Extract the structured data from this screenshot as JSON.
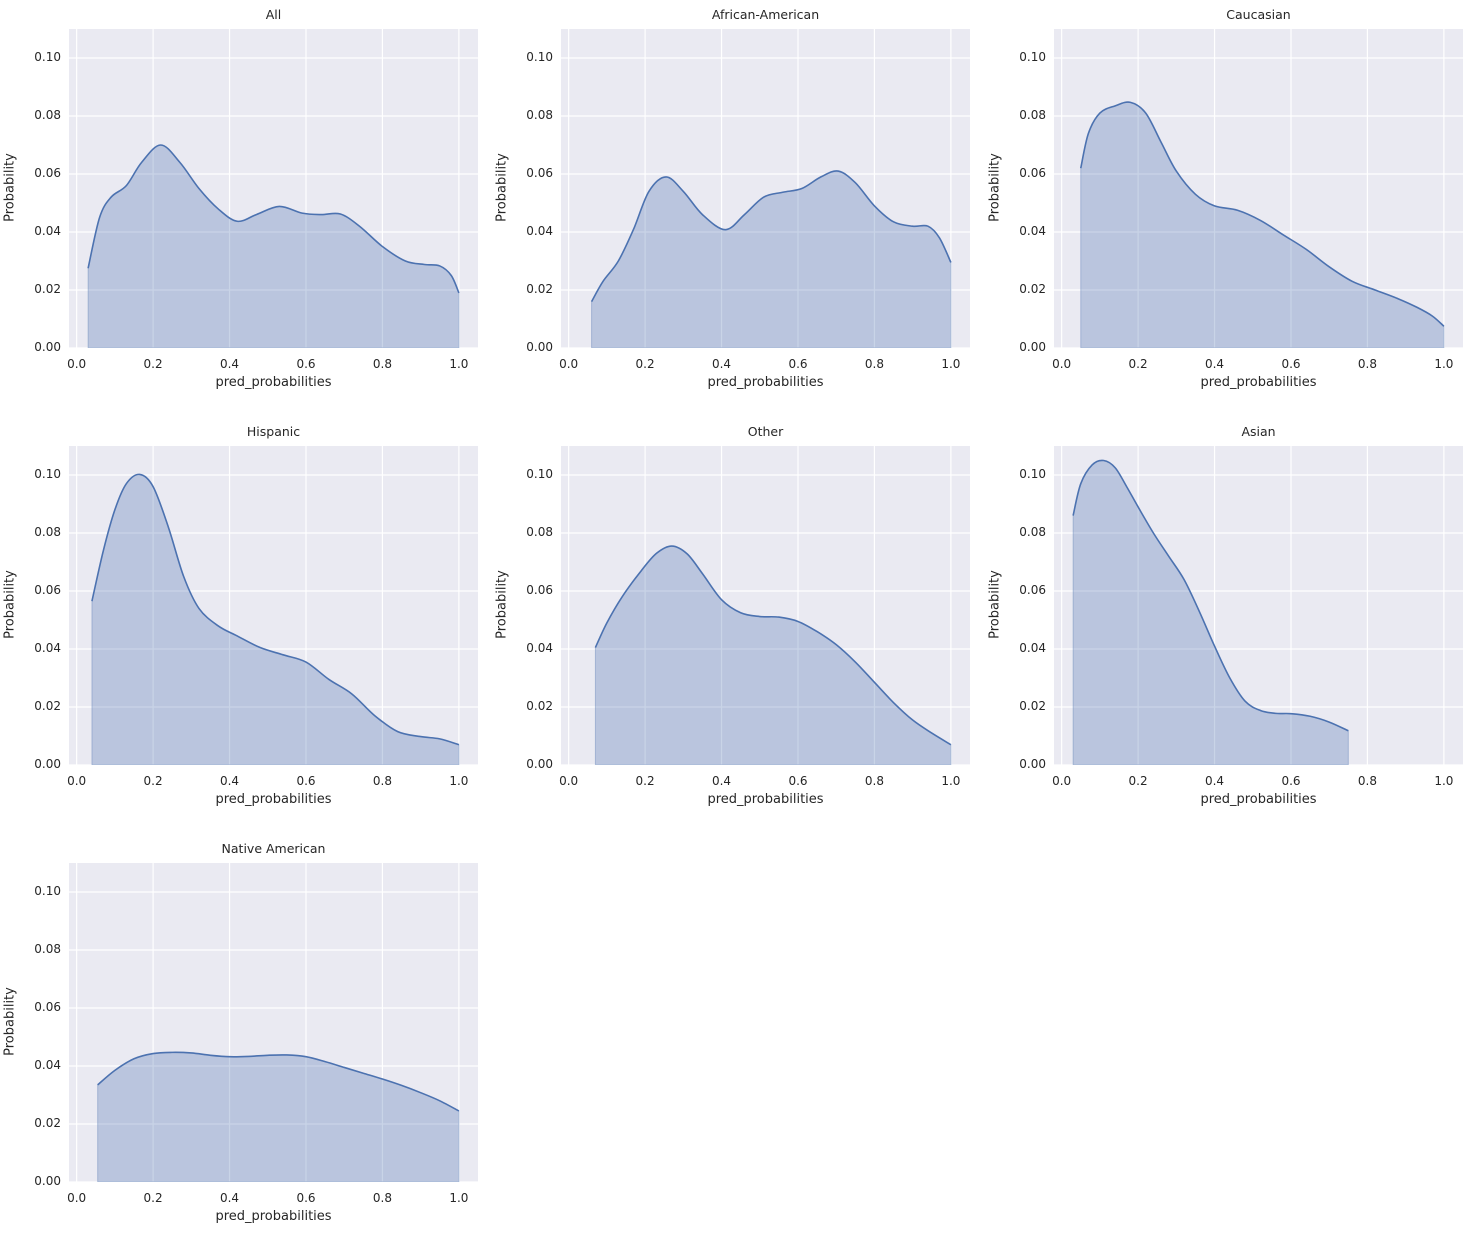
{
  "figure": {
    "background": "#ffffff",
    "plot_background": "#eaeaf2",
    "grid_color": "#ffffff",
    "line_color": "#4c72b0",
    "fill_color": "#4c72b0",
    "fill_opacity": 0.3
  },
  "chart_data": [
    {
      "type": "area",
      "title": "All",
      "xlabel": "pred_probabilities",
      "ylabel": "Probability",
      "xlim": [
        -0.02,
        1.05
      ],
      "ylim": [
        0,
        0.11
      ],
      "xticks": [
        "0.0",
        "0.2",
        "0.4",
        "0.6",
        "0.8",
        "1.0"
      ],
      "yticks": [
        "0.00",
        "0.02",
        "0.04",
        "0.06",
        "0.08",
        "0.10"
      ],
      "grid": true,
      "x": [
        0.03,
        0.06,
        0.09,
        0.13,
        0.17,
        0.22,
        0.27,
        0.32,
        0.37,
        0.42,
        0.47,
        0.53,
        0.59,
        0.64,
        0.69,
        0.74,
        0.8,
        0.86,
        0.91,
        0.95,
        0.98,
        1.0
      ],
      "y": [
        0.0275,
        0.045,
        0.052,
        0.056,
        0.064,
        0.07,
        0.064,
        0.055,
        0.048,
        0.0437,
        0.046,
        0.0488,
        0.0465,
        0.046,
        0.0462,
        0.042,
        0.035,
        0.03,
        0.0288,
        0.0283,
        0.025,
        0.019
      ]
    },
    {
      "type": "area",
      "title": "African-American",
      "xlabel": "pred_probabilities",
      "ylabel": "Probability",
      "xlim": [
        -0.02,
        1.05
      ],
      "ylim": [
        0,
        0.11
      ],
      "xticks": [
        "0.0",
        "0.2",
        "0.4",
        "0.6",
        "0.8",
        "1.0"
      ],
      "yticks": [
        "0.00",
        "0.02",
        "0.04",
        "0.06",
        "0.08",
        "0.10"
      ],
      "grid": true,
      "x": [
        0.06,
        0.09,
        0.13,
        0.17,
        0.21,
        0.255,
        0.3,
        0.35,
        0.41,
        0.46,
        0.51,
        0.56,
        0.61,
        0.66,
        0.705,
        0.75,
        0.8,
        0.85,
        0.9,
        0.94,
        0.97,
        1.0
      ],
      "y": [
        0.016,
        0.023,
        0.03,
        0.041,
        0.054,
        0.059,
        0.054,
        0.046,
        0.0408,
        0.046,
        0.052,
        0.0537,
        0.055,
        0.059,
        0.061,
        0.057,
        0.049,
        0.0435,
        0.042,
        0.042,
        0.038,
        0.0295
      ]
    },
    {
      "type": "area",
      "title": "Caucasian",
      "xlabel": "pred_probabilities",
      "ylabel": "Probability",
      "xlim": [
        -0.02,
        1.05
      ],
      "ylim": [
        0,
        0.11
      ],
      "xticks": [
        "0.0",
        "0.2",
        "0.4",
        "0.6",
        "0.8",
        "1.0"
      ],
      "yticks": [
        "0.00",
        "0.02",
        "0.04",
        "0.06",
        "0.08",
        "0.10"
      ],
      "grid": true,
      "x": [
        0.05,
        0.07,
        0.1,
        0.14,
        0.18,
        0.22,
        0.26,
        0.3,
        0.35,
        0.4,
        0.46,
        0.52,
        0.58,
        0.64,
        0.7,
        0.76,
        0.82,
        0.88,
        0.93,
        0.97,
        1.0
      ],
      "y": [
        0.062,
        0.074,
        0.081,
        0.0835,
        0.0847,
        0.081,
        0.071,
        0.061,
        0.053,
        0.049,
        0.0475,
        0.044,
        0.039,
        0.034,
        0.028,
        0.023,
        0.02,
        0.017,
        0.014,
        0.011,
        0.0075
      ]
    },
    {
      "type": "area",
      "title": "Hispanic",
      "xlabel": "pred_probabilities",
      "ylabel": "Probability",
      "xlim": [
        -0.02,
        1.05
      ],
      "ylim": [
        0,
        0.11
      ],
      "xticks": [
        "0.0",
        "0.2",
        "0.4",
        "0.6",
        "0.8",
        "1.0"
      ],
      "yticks": [
        "0.00",
        "0.02",
        "0.04",
        "0.06",
        "0.08",
        "0.10"
      ],
      "grid": true,
      "x": [
        0.04,
        0.07,
        0.1,
        0.13,
        0.165,
        0.2,
        0.24,
        0.28,
        0.32,
        0.37,
        0.42,
        0.48,
        0.54,
        0.6,
        0.66,
        0.72,
        0.78,
        0.84,
        0.9,
        0.95,
        1.0
      ],
      "y": [
        0.0565,
        0.074,
        0.088,
        0.097,
        0.1002,
        0.096,
        0.082,
        0.065,
        0.054,
        0.048,
        0.0445,
        0.0405,
        0.038,
        0.0355,
        0.0295,
        0.0245,
        0.017,
        0.0115,
        0.0098,
        0.009,
        0.007
      ]
    },
    {
      "type": "area",
      "title": "Other",
      "xlabel": "pred_probabilities",
      "ylabel": "Probability",
      "xlim": [
        -0.02,
        1.05
      ],
      "ylim": [
        0,
        0.11
      ],
      "xticks": [
        "0.0",
        "0.2",
        "0.4",
        "0.6",
        "0.8",
        "1.0"
      ],
      "yticks": [
        "0.00",
        "0.02",
        "0.04",
        "0.06",
        "0.08",
        "0.10"
      ],
      "grid": true,
      "x": [
        0.07,
        0.1,
        0.14,
        0.19,
        0.23,
        0.27,
        0.31,
        0.35,
        0.4,
        0.45,
        0.5,
        0.55,
        0.6,
        0.65,
        0.7,
        0.75,
        0.8,
        0.85,
        0.9,
        0.95,
        1.0
      ],
      "y": [
        0.0405,
        0.049,
        0.058,
        0.067,
        0.073,
        0.0755,
        0.0728,
        0.066,
        0.057,
        0.0525,
        0.0512,
        0.051,
        0.0495,
        0.046,
        0.0415,
        0.0355,
        0.0285,
        0.0215,
        0.0155,
        0.011,
        0.007
      ]
    },
    {
      "type": "area",
      "title": "Asian",
      "xlabel": "pred_probabilities",
      "ylabel": "Probability",
      "xlim": [
        -0.02,
        1.05
      ],
      "ylim": [
        0,
        0.11
      ],
      "xticks": [
        "0.0",
        "0.2",
        "0.4",
        "0.6",
        "0.8",
        "1.0"
      ],
      "yticks": [
        "0.00",
        "0.02",
        "0.04",
        "0.06",
        "0.08",
        "0.10"
      ],
      "grid": true,
      "x": [
        0.03,
        0.05,
        0.08,
        0.11,
        0.14,
        0.17,
        0.2,
        0.24,
        0.28,
        0.32,
        0.36,
        0.4,
        0.44,
        0.48,
        0.52,
        0.56,
        0.6,
        0.65,
        0.7,
        0.75
      ],
      "y": [
        0.086,
        0.097,
        0.1035,
        0.105,
        0.1025,
        0.096,
        0.089,
        0.08,
        0.072,
        0.064,
        0.053,
        0.041,
        0.03,
        0.022,
        0.0188,
        0.0178,
        0.0177,
        0.0168,
        0.0148,
        0.0118
      ]
    },
    {
      "type": "area",
      "title": "Native American",
      "xlabel": "pred_probabilities",
      "ylabel": "Probability",
      "xlim": [
        -0.02,
        1.05
      ],
      "ylim": [
        0,
        0.11
      ],
      "xticks": [
        "0.0",
        "0.2",
        "0.4",
        "0.6",
        "0.8",
        "1.0"
      ],
      "yticks": [
        "0.00",
        "0.02",
        "0.04",
        "0.06",
        "0.08",
        "0.10"
      ],
      "grid": true,
      "x": [
        0.055,
        0.1,
        0.15,
        0.2,
        0.25,
        0.3,
        0.35,
        0.4,
        0.45,
        0.5,
        0.55,
        0.6,
        0.65,
        0.7,
        0.75,
        0.8,
        0.85,
        0.9,
        0.95,
        1.0
      ],
      "y": [
        0.0335,
        0.0385,
        0.0425,
        0.0443,
        0.0447,
        0.0445,
        0.0437,
        0.0432,
        0.0433,
        0.0437,
        0.0438,
        0.0432,
        0.0415,
        0.0395,
        0.0375,
        0.0355,
        0.0333,
        0.0308,
        0.028,
        0.0245
      ]
    }
  ]
}
